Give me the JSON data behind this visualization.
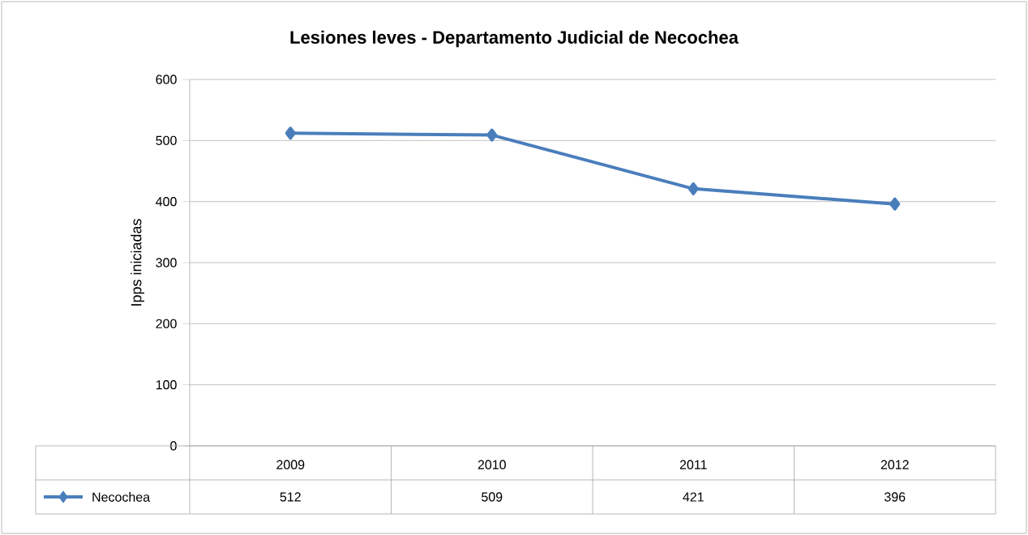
{
  "chart_data": {
    "type": "line",
    "title": "Lesiones leves - Departamento Judicial de Necochea",
    "ylabel": "Ipps iniciadas",
    "categories": [
      "2009",
      "2010",
      "2011",
      "2012"
    ],
    "series": [
      {
        "name": "Necochea",
        "color": "#4a7ebb",
        "values": [
          512,
          509,
          421,
          396
        ]
      }
    ],
    "ylim": [
      0,
      600
    ],
    "yticks": [
      0,
      100,
      200,
      300,
      400,
      500,
      600
    ],
    "grid": "y",
    "legend": "bottom",
    "marker": "diamond",
    "line_style": "solid",
    "data_labels": true
  }
}
